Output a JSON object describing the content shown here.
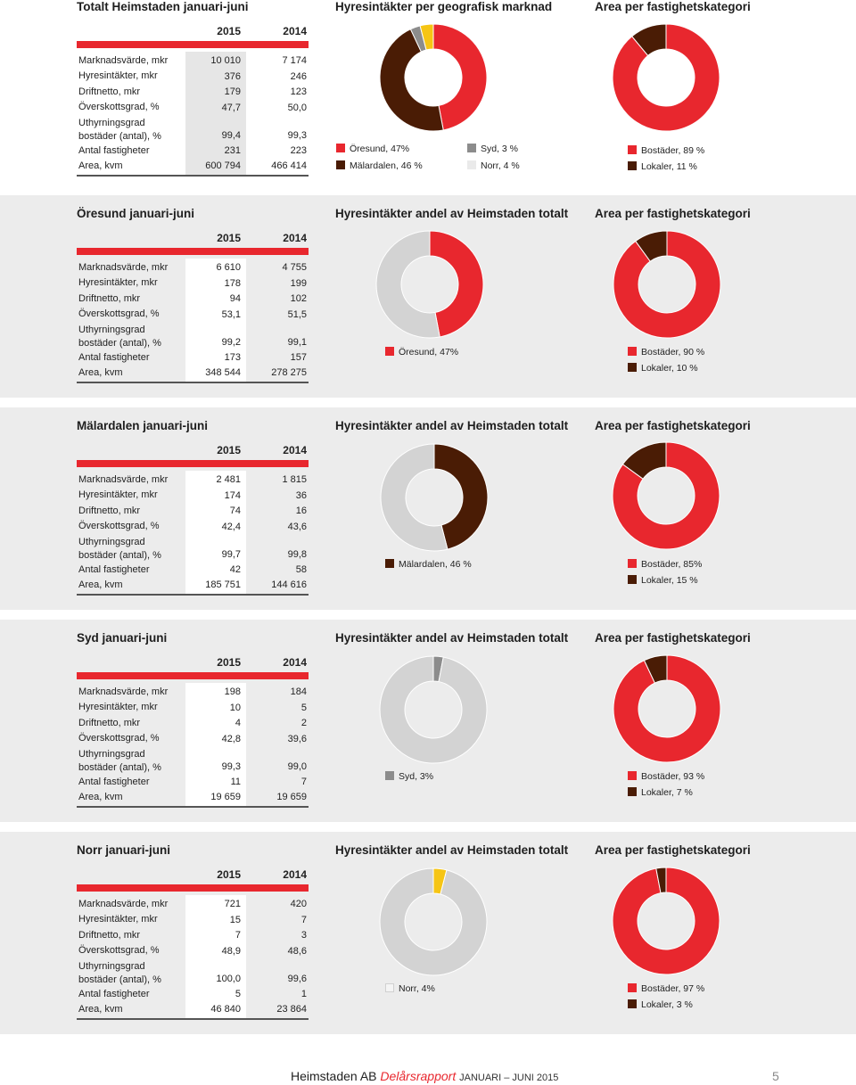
{
  "colors": {
    "red": "#e8272e",
    "brown": "#4a1c05",
    "grey_dark": "#8c8c8c",
    "yellow": "#f6c514",
    "grey_light": "#d3d3d3",
    "white_light": "#eaeaea"
  },
  "year_2015": "2015",
  "year_2014": "2014",
  "row_labels": {
    "marknadsvarde": "Marknadsvärde, mkr",
    "hyresintakter": "Hyresintäkter, mkr",
    "driftnetto": "Driftnetto, mkr",
    "overskottsgrad": "Överskottsgrad, %",
    "uthyrning_line1": "Uthyrningsgrad",
    "uthyrning_line2": "bostäder (antal), %",
    "antal": "Antal fastigheter",
    "area": "Area, kvm"
  },
  "sections": [
    {
      "title": "Totalt Heimstaden januari-juni",
      "pie1_title": "Hyresintäkter per geografisk marknad",
      "pie2_title": "Area per fastighetskategori",
      "values_2015": [
        "10 010",
        "376",
        "179",
        "47,7",
        "99,4",
        "231",
        "600 794"
      ],
      "values_2014": [
        "7 174",
        "246",
        "123",
        "50,0",
        "99,3",
        "223",
        "466 414"
      ],
      "pie1": {
        "slices": [
          {
            "label": "Öresund, 47%",
            "value": 47,
            "color": "#e8272e"
          },
          {
            "label": "Mälardalen, 46 %",
            "value": 46,
            "color": "#4a1c05"
          },
          {
            "label": "Syd, 3 %",
            "value": 3,
            "color": "#8c8c8c"
          },
          {
            "label": "Norr, 4 %",
            "value": 4,
            "color": "#f6c514"
          }
        ],
        "legend_swatch_norr": "#eaeaea"
      },
      "pie2": {
        "slices": [
          {
            "label": "Bostäder, 89 %",
            "value": 89,
            "color": "#e8272e"
          },
          {
            "label": "Lokaler, 11 %",
            "value": 11,
            "color": "#4a1c05"
          }
        ]
      }
    },
    {
      "title": "Öresund januari-juni",
      "pie1_title": "Hyresintäkter andel av Heimstaden totalt",
      "pie2_title": "Area per fastighetskategori",
      "values_2015": [
        "6 610",
        "178",
        "94",
        "53,1",
        "99,2",
        "173",
        "348 544"
      ],
      "values_2014": [
        "4 755",
        "199",
        "102",
        "51,5",
        "99,1",
        "157",
        "278 275"
      ],
      "pie1": {
        "label": "Öresund, 47%",
        "value": 47,
        "color": "#e8272e"
      },
      "pie2": {
        "slices": [
          {
            "label": "Bostäder, 90 %",
            "value": 90,
            "color": "#e8272e"
          },
          {
            "label": "Lokaler, 10 %",
            "value": 10,
            "color": "#4a1c05"
          }
        ]
      }
    },
    {
      "title": "Mälardalen januari-juni",
      "pie1_title": "Hyresintäkter andel av Heimstaden totalt",
      "pie2_title": "Area per fastighetskategori",
      "values_2015": [
        "2 481",
        "174",
        "74",
        "42,4",
        "99,7",
        "42",
        "185 751"
      ],
      "values_2014": [
        "1 815",
        "36",
        "16",
        "43,6",
        "99,8",
        "58",
        "144 616"
      ],
      "pie1": {
        "label": "Mälardalen, 46 %",
        "value": 46,
        "color": "#4a1c05"
      },
      "pie2": {
        "slices": [
          {
            "label": "Bostäder, 85%",
            "value": 85,
            "color": "#e8272e"
          },
          {
            "label": "Lokaler, 15 %",
            "value": 15,
            "color": "#4a1c05"
          }
        ]
      }
    },
    {
      "title": "Syd januari-juni",
      "pie1_title": "Hyresintäkter andel av Heimstaden totalt",
      "pie2_title": "Area per fastighetskategori",
      "values_2015": [
        "198",
        "10",
        "4",
        "42,8",
        "99,3",
        "11",
        "19 659"
      ],
      "values_2014": [
        "184",
        "5",
        "2",
        "39,6",
        "99,0",
        "7",
        "19 659"
      ],
      "pie1": {
        "label": "Syd, 3%",
        "value": 3,
        "color": "#8c8c8c"
      },
      "pie2": {
        "slices": [
          {
            "label": "Bostäder, 93 %",
            "value": 93,
            "color": "#e8272e"
          },
          {
            "label": "Lokaler, 7 %",
            "value": 7,
            "color": "#4a1c05"
          }
        ]
      }
    },
    {
      "title": "Norr januari-juni",
      "pie1_title": "Hyresintäkter andel av Heimstaden totalt",
      "pie2_title": "Area per fastighetskategori",
      "values_2015": [
        "721",
        "15",
        "7",
        "48,9",
        "100,0",
        "5",
        "46 840"
      ],
      "values_2014": [
        "420",
        "7",
        "3",
        "48,6",
        "99,6",
        "1",
        "23 864"
      ],
      "pie1": {
        "label": "Norr, 4%",
        "value": 4,
        "color": "#f6c514",
        "legend_swatch": "#f4f4f4"
      },
      "pie2": {
        "slices": [
          {
            "label": "Bostäder, 97 %",
            "value": 97,
            "color": "#e8272e"
          },
          {
            "label": "Lokaler, 3 %",
            "value": 3,
            "color": "#4a1c05"
          }
        ]
      }
    }
  ],
  "footer": {
    "company": "Heimstaden AB",
    "report": "Delårsrapport",
    "period": "JANUARI – JUNI 2015",
    "page": "5"
  }
}
